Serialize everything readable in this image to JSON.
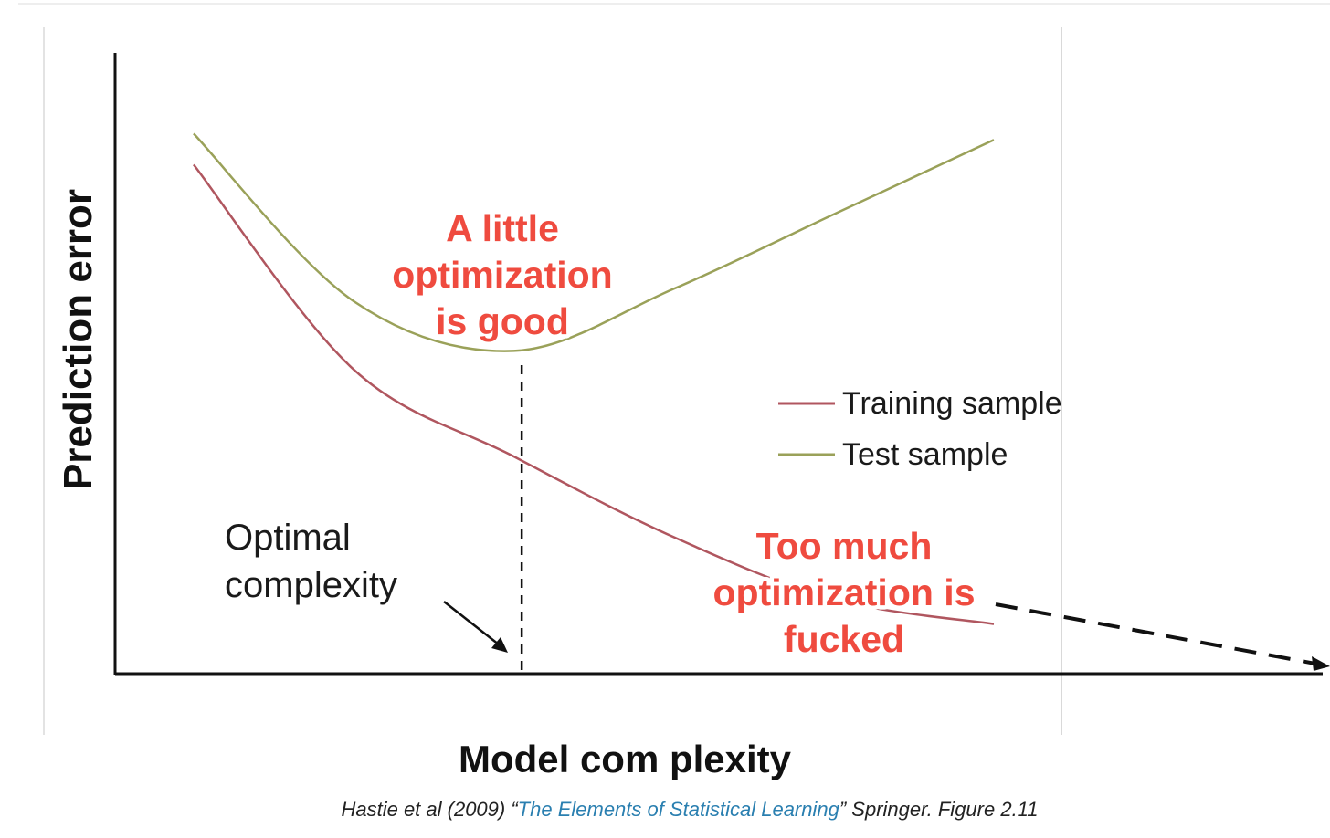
{
  "chart_data": {
    "type": "line",
    "xlabel": "Model com plexity",
    "ylabel": "Prediction error",
    "grid": false,
    "legend_position": "right",
    "series": [
      {
        "name": "Training sample",
        "color": "#b0565f",
        "x": [
          0.0,
          0.2,
          0.4,
          0.6,
          0.8,
          1.0
        ],
        "y": [
          0.82,
          0.49,
          0.35,
          0.22,
          0.12,
          0.08
        ]
      },
      {
        "name": "Test sample",
        "color": "#9aa159",
        "x": [
          0.0,
          0.2,
          0.4,
          0.6,
          0.8,
          1.0
        ],
        "y": [
          0.87,
          0.6,
          0.52,
          0.62,
          0.74,
          0.86
        ]
      }
    ],
    "optimal_x": 0.41,
    "annotations": {
      "optimal": [
        "Optimal",
        "complexity"
      ],
      "good": [
        "A little",
        "optimization",
        "is good"
      ],
      "bad": [
        "Too much",
        "optimization is",
        "fucked"
      ]
    }
  },
  "caption": {
    "prefix": "Hastie et al (2009) “",
    "title": "The Elements of Statistical Learning",
    "suffix": "” Springer. Figure 2.11",
    "link_color": "#2a7fb0"
  }
}
